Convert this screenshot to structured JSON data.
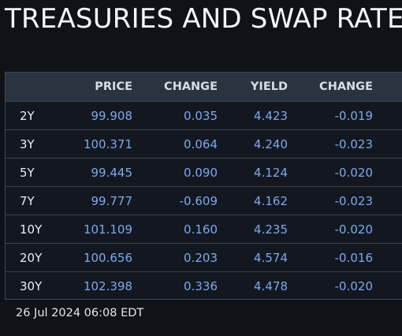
{
  "title": "TREASURIES AND SWAP RATE",
  "table": {
    "headers": {
      "tenor": "",
      "price": "PRICE",
      "change1": "CHANGE",
      "yield": "YIELD",
      "change2": "CHANGE"
    },
    "rows": [
      {
        "tenor": "2Y",
        "price": "99.908",
        "change1": "0.035",
        "yield": "4.423",
        "change2": "-0.019"
      },
      {
        "tenor": "3Y",
        "price": "100.371",
        "change1": "0.064",
        "yield": "4.240",
        "change2": "-0.023"
      },
      {
        "tenor": "5Y",
        "price": "99.445",
        "change1": "0.090",
        "yield": "4.124",
        "change2": "-0.020"
      },
      {
        "tenor": "7Y",
        "price": "99.777",
        "change1": "-0.609",
        "yield": "4.162",
        "change2": "-0.023"
      },
      {
        "tenor": "10Y",
        "price": "101.109",
        "change1": "0.160",
        "yield": "4.235",
        "change2": "-0.020"
      },
      {
        "tenor": "20Y",
        "price": "100.656",
        "change1": "0.203",
        "yield": "4.574",
        "change2": "-0.016"
      },
      {
        "tenor": "30Y",
        "price": "102.398",
        "change1": "0.336",
        "yield": "4.478",
        "change2": "-0.020"
      }
    ]
  },
  "timestamp": "26 Jul 2024 06:08 EDT",
  "colors": {
    "background": "#0f1217",
    "header_background": "#2a3340",
    "value_text": "#7fa8ec",
    "label_text": "#e9edf2"
  }
}
